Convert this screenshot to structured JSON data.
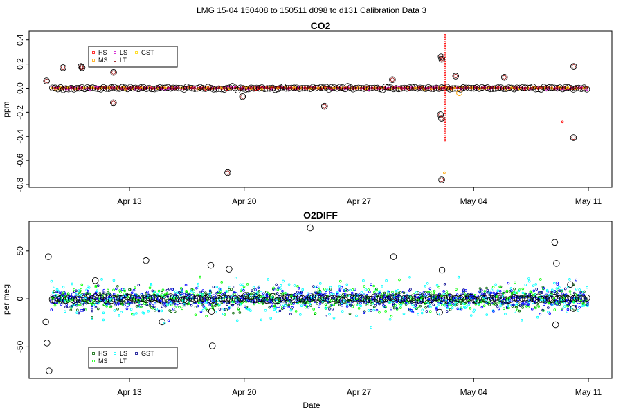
{
  "suptitle": "LMG   15-04    150408 to 150511    d098 to d131   Calibration Data 3",
  "chart_data": [
    {
      "type": "scatter",
      "title": "CO2",
      "xlabel": "",
      "ylabel": "ppm",
      "xlim": [
        "2015-04-08",
        "2015-05-11"
      ],
      "ylim": [
        -0.8,
        0.45
      ],
      "yticks": [
        "-0.8",
        "-0.6",
        "-0.4",
        "-0.2",
        "0.0",
        "0.2",
        "0.4"
      ],
      "ytick_values": [
        -0.8,
        -0.6,
        -0.4,
        -0.2,
        0.0,
        0.2,
        0.4
      ],
      "xticks": [
        "Apr 13",
        "Apr 20",
        "Apr 27",
        "May 04",
        "May 11"
      ],
      "xtick_values": [
        "2015-04-13",
        "2015-04-20",
        "2015-04-27",
        "2015-05-04",
        "2015-05-11"
      ],
      "legend_placement": "top-left",
      "grid": false,
      "series": [
        {
          "name": "HS",
          "color": "#ff0000",
          "note": "points mostly at 0.0; vertical spread near 2015-05-02 from -0.43 to 0.45"
        },
        {
          "name": "MS",
          "color": "#ffa500"
        },
        {
          "name": "LS",
          "color": "#cd00cd"
        },
        {
          "name": "LT",
          "color": "#8b0000"
        },
        {
          "name": "GST",
          "color": "#ffd700"
        }
      ],
      "outliers": [
        {
          "x": "2015-04-08",
          "y": 0.06
        },
        {
          "x": "2015-04-09",
          "y": 0.17
        },
        {
          "x": "2015-04-10",
          "y": 0.18
        },
        {
          "x": "2015-04-10",
          "y": 0.17
        },
        {
          "x": "2015-04-11",
          "y": 0.21
        },
        {
          "x": "2015-04-12",
          "y": 0.13
        },
        {
          "x": "2015-04-12",
          "y": -0.12
        },
        {
          "x": "2015-04-19",
          "y": -0.7
        },
        {
          "x": "2015-04-20",
          "y": -0.07
        },
        {
          "x": "2015-04-25",
          "y": -0.15
        },
        {
          "x": "2015-04-29",
          "y": 0.07
        },
        {
          "x": "2015-05-02",
          "y": 0.26
        },
        {
          "x": "2015-05-02",
          "y": 0.24
        },
        {
          "x": "2015-05-02",
          "y": -0.22
        },
        {
          "x": "2015-05-02",
          "y": -0.25
        },
        {
          "x": "2015-05-02",
          "y": -0.76
        },
        {
          "x": "2015-05-03",
          "y": 0.1
        },
        {
          "x": "2015-05-06",
          "y": 0.09
        },
        {
          "x": "2015-05-10",
          "y": 0.18
        },
        {
          "x": "2015-05-10",
          "y": -0.41
        }
      ]
    },
    {
      "type": "scatter",
      "title": "O2DIFF",
      "xlabel": "Date",
      "ylabel": "per meg",
      "xlim": [
        "2015-04-08",
        "2015-05-11"
      ],
      "ylim": [
        -80,
        78
      ],
      "yticks": [
        "-50",
        "0",
        "50"
      ],
      "ytick_values": [
        -50,
        0,
        50
      ],
      "xticks": [
        "Apr 13",
        "Apr 20",
        "Apr 27",
        "May 04",
        "May 11"
      ],
      "xtick_values": [
        "2015-04-13",
        "2015-04-20",
        "2015-04-27",
        "2015-05-04",
        "2015-05-11"
      ],
      "legend_placement": "bottom-left",
      "grid": false,
      "series": [
        {
          "name": "HS",
          "color": "#006400"
        },
        {
          "name": "MS",
          "color": "#00ff00"
        },
        {
          "name": "LS",
          "color": "#00ffff"
        },
        {
          "name": "LT",
          "color": "#0000ff"
        },
        {
          "name": "GST",
          "color": "#00008b"
        }
      ],
      "outliers": [
        {
          "x": "2015-04-08",
          "y": -24
        },
        {
          "x": "2015-04-08",
          "y": -75
        },
        {
          "x": "2015-04-08",
          "y": 44
        },
        {
          "x": "2015-04-08",
          "y": -46
        },
        {
          "x": "2015-04-11",
          "y": 19
        },
        {
          "x": "2015-04-14",
          "y": 40
        },
        {
          "x": "2015-04-15",
          "y": -24
        },
        {
          "x": "2015-04-18",
          "y": 35
        },
        {
          "x": "2015-04-18",
          "y": -13
        },
        {
          "x": "2015-04-18",
          "y": -49
        },
        {
          "x": "2015-04-19",
          "y": 31
        },
        {
          "x": "2015-04-24",
          "y": 74
        },
        {
          "x": "2015-04-29",
          "y": 44
        },
        {
          "x": "2015-05-02",
          "y": -14
        },
        {
          "x": "2015-05-02",
          "y": 30
        },
        {
          "x": "2015-05-09",
          "y": 59
        },
        {
          "x": "2015-05-09",
          "y": 37
        },
        {
          "x": "2015-05-09",
          "y": -27
        },
        {
          "x": "2015-05-10",
          "y": 15
        },
        {
          "x": "2015-05-10",
          "y": -10
        }
      ]
    }
  ]
}
